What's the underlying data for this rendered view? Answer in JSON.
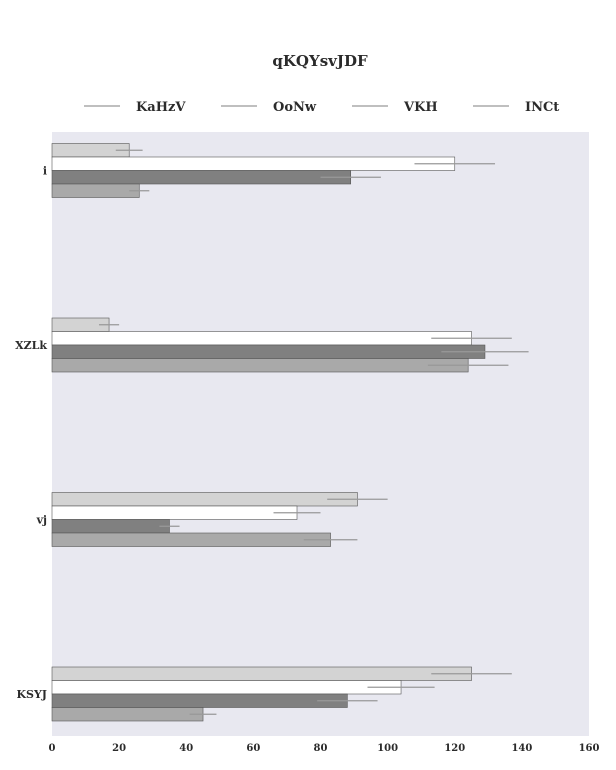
{
  "chart_data": {
    "type": "bar",
    "orientation": "horizontal",
    "title": "qKQYsvJDF",
    "xlabel": "",
    "ylabel": "",
    "categories": [
      "i",
      "XZLk",
      "vj",
      "KSYJ"
    ],
    "series": [
      {
        "name": "KaHzV",
        "color": "#d3d3d3",
        "values": [
          23,
          17,
          91,
          125
        ],
        "errors": [
          4,
          3,
          9,
          12
        ]
      },
      {
        "name": "OoNw",
        "color": "#ffffff",
        "values": [
          120,
          125,
          73,
          104
        ],
        "errors": [
          12,
          12,
          7,
          10
        ]
      },
      {
        "name": "VKH",
        "color": "#808080",
        "values": [
          89,
          129,
          35,
          88
        ],
        "errors": [
          9,
          13,
          3,
          9
        ]
      },
      {
        "name": "INCt",
        "color": "#a9a9a9",
        "values": [
          26,
          124,
          83,
          45
        ],
        "errors": [
          3,
          12,
          8,
          4
        ]
      }
    ],
    "xlim": [
      0,
      160
    ],
    "xticks": [
      0,
      20,
      40,
      60,
      80,
      100,
      120,
      140,
      160
    ],
    "grid": false,
    "legend_position": "top",
    "background": "#e8e8f0",
    "edge_color": "#555555",
    "errorbar_color": "#999999"
  }
}
